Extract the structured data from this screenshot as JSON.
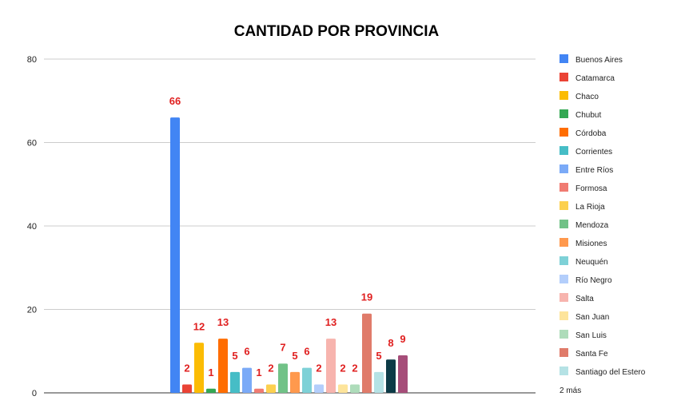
{
  "chart_data": {
    "type": "bar",
    "title": "CANTIDAD POR PROVINCIA",
    "xlabel": "",
    "ylabel": "",
    "ylim": [
      0,
      80
    ],
    "yticks": [
      0,
      20,
      40,
      60,
      80
    ],
    "grid": true,
    "legend_position": "right",
    "legend_more": "2 más",
    "data_label_color": "#e02020",
    "series": [
      {
        "name": "Buenos Aires",
        "value": 66,
        "color": "#4285f4"
      },
      {
        "name": "Catamarca",
        "value": 2,
        "color": "#ea4335"
      },
      {
        "name": "Chaco",
        "value": 12,
        "color": "#fbbc04"
      },
      {
        "name": "Chubut",
        "value": 1,
        "color": "#34a853"
      },
      {
        "name": "Córdoba",
        "value": 13,
        "color": "#ff6d01"
      },
      {
        "name": "Corrientes",
        "value": 5,
        "color": "#46bdc6"
      },
      {
        "name": "Entre Ríos",
        "value": 6,
        "color": "#7baaf7"
      },
      {
        "name": "Formosa",
        "value": 1,
        "color": "#f07b72"
      },
      {
        "name": "La Rioja",
        "value": 2,
        "color": "#fcd04f"
      },
      {
        "name": "Mendoza",
        "value": 7,
        "color": "#71c287"
      },
      {
        "name": "Misiones",
        "value": 5,
        "color": "#ff994d"
      },
      {
        "name": "Neuquén",
        "value": 6,
        "color": "#7ed1d7"
      },
      {
        "name": "Río Negro",
        "value": 2,
        "color": "#b3cefb"
      },
      {
        "name": "Salta",
        "value": 13,
        "color": "#f7b4ae"
      },
      {
        "name": "San Juan",
        "value": 2,
        "color": "#fde49b"
      },
      {
        "name": "San Luis",
        "value": 2,
        "color": "#aedcba"
      },
      {
        "name": "Santa Fe",
        "value": 19,
        "color": "#e07b6a"
      },
      {
        "name": "Santiago del Estero",
        "value": 5,
        "color": "#b5e2e5"
      },
      {
        "name": "",
        "value": 8,
        "color": "#0d3b47"
      },
      {
        "name": "",
        "value": 9,
        "color": "#a64d79"
      }
    ]
  }
}
